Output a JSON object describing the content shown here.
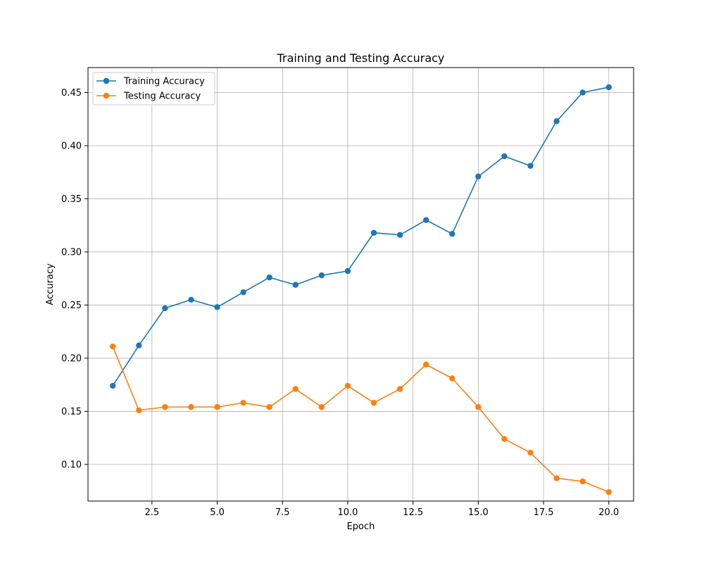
{
  "chart_data": {
    "type": "line",
    "title": "Training and Testing Accuracy",
    "xlabel": "Epoch",
    "ylabel": "Accuracy",
    "xlim": [
      0.05,
      20.95
    ],
    "ylim": [
      0.0655,
      0.4735
    ],
    "xticks": [
      2.5,
      5.0,
      7.5,
      10.0,
      12.5,
      15.0,
      17.5,
      20.0
    ],
    "xtick_labels": [
      "2.5",
      "5.0",
      "7.5",
      "10.0",
      "12.5",
      "15.0",
      "17.5",
      "20.0"
    ],
    "yticks": [
      0.1,
      0.15,
      0.2,
      0.25,
      0.3,
      0.35,
      0.4,
      0.45
    ],
    "ytick_labels": [
      "0.10",
      "0.15",
      "0.20",
      "0.25",
      "0.30",
      "0.35",
      "0.40",
      "0.45"
    ],
    "grid": true,
    "legend_position": "top-left",
    "x": [
      1,
      2,
      3,
      4,
      5,
      6,
      7,
      8,
      9,
      10,
      11,
      12,
      13,
      14,
      15,
      16,
      17,
      18,
      19,
      20
    ],
    "series": [
      {
        "name": "Training Accuracy",
        "color": "#1f77b4",
        "values": [
          0.174,
          0.212,
          0.247,
          0.255,
          0.248,
          0.262,
          0.276,
          0.269,
          0.278,
          0.282,
          0.318,
          0.316,
          0.33,
          0.317,
          0.371,
          0.39,
          0.381,
          0.423,
          0.45,
          0.455
        ]
      },
      {
        "name": "Testing Accuracy",
        "color": "#ff7f0e",
        "values": [
          0.211,
          0.151,
          0.154,
          0.154,
          0.154,
          0.158,
          0.154,
          0.171,
          0.154,
          0.174,
          0.158,
          0.171,
          0.194,
          0.181,
          0.154,
          0.124,
          0.111,
          0.087,
          0.084,
          0.074
        ]
      }
    ]
  }
}
